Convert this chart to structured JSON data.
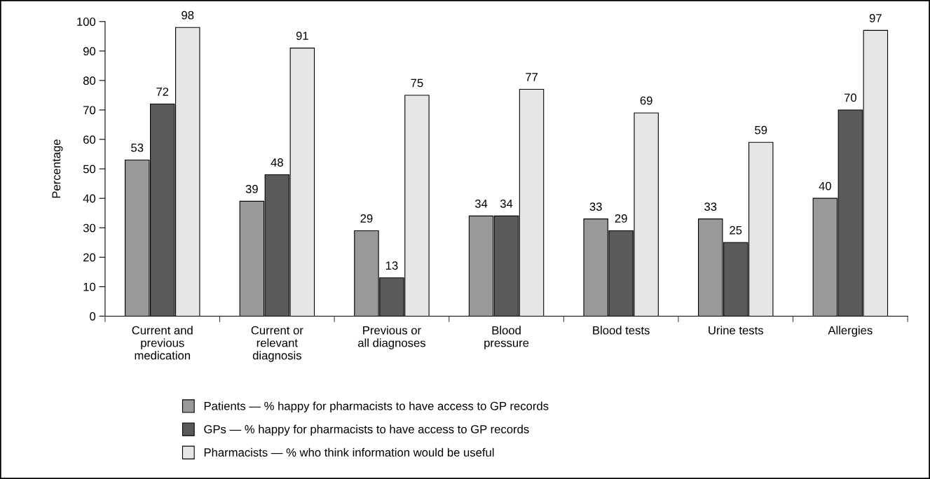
{
  "chart_data": {
    "type": "bar",
    "ylabel": "Percentage",
    "categories": [
      "Current and\nprevious\nmedication",
      "Current or\nrelevant\ndiagnosis",
      "Previous or\nall diagnoses",
      "Blood\npressure",
      "Blood tests",
      "Urine tests",
      "Allergies"
    ],
    "series": [
      {
        "name": "Patients — % happy for pharmacists to have access to GP records",
        "color": "#999999",
        "values": [
          53,
          39,
          29,
          34,
          33,
          33,
          40
        ]
      },
      {
        "name": "GPs — % happy for pharmacists to have access to GP records",
        "color": "#5a5a5a",
        "values": [
          72,
          48,
          13,
          34,
          29,
          25,
          70
        ]
      },
      {
        "name": "Pharmacists — % who think information would be useful",
        "color": "#e6e6e6",
        "values": [
          98,
          91,
          75,
          77,
          69,
          59,
          97
        ]
      }
    ],
    "ylim": [
      0,
      100
    ],
    "yticks": [
      0,
      10,
      20,
      30,
      40,
      50,
      60,
      70,
      80,
      90,
      100
    ],
    "data_labels": true,
    "grid": false,
    "legend": "bottom"
  }
}
